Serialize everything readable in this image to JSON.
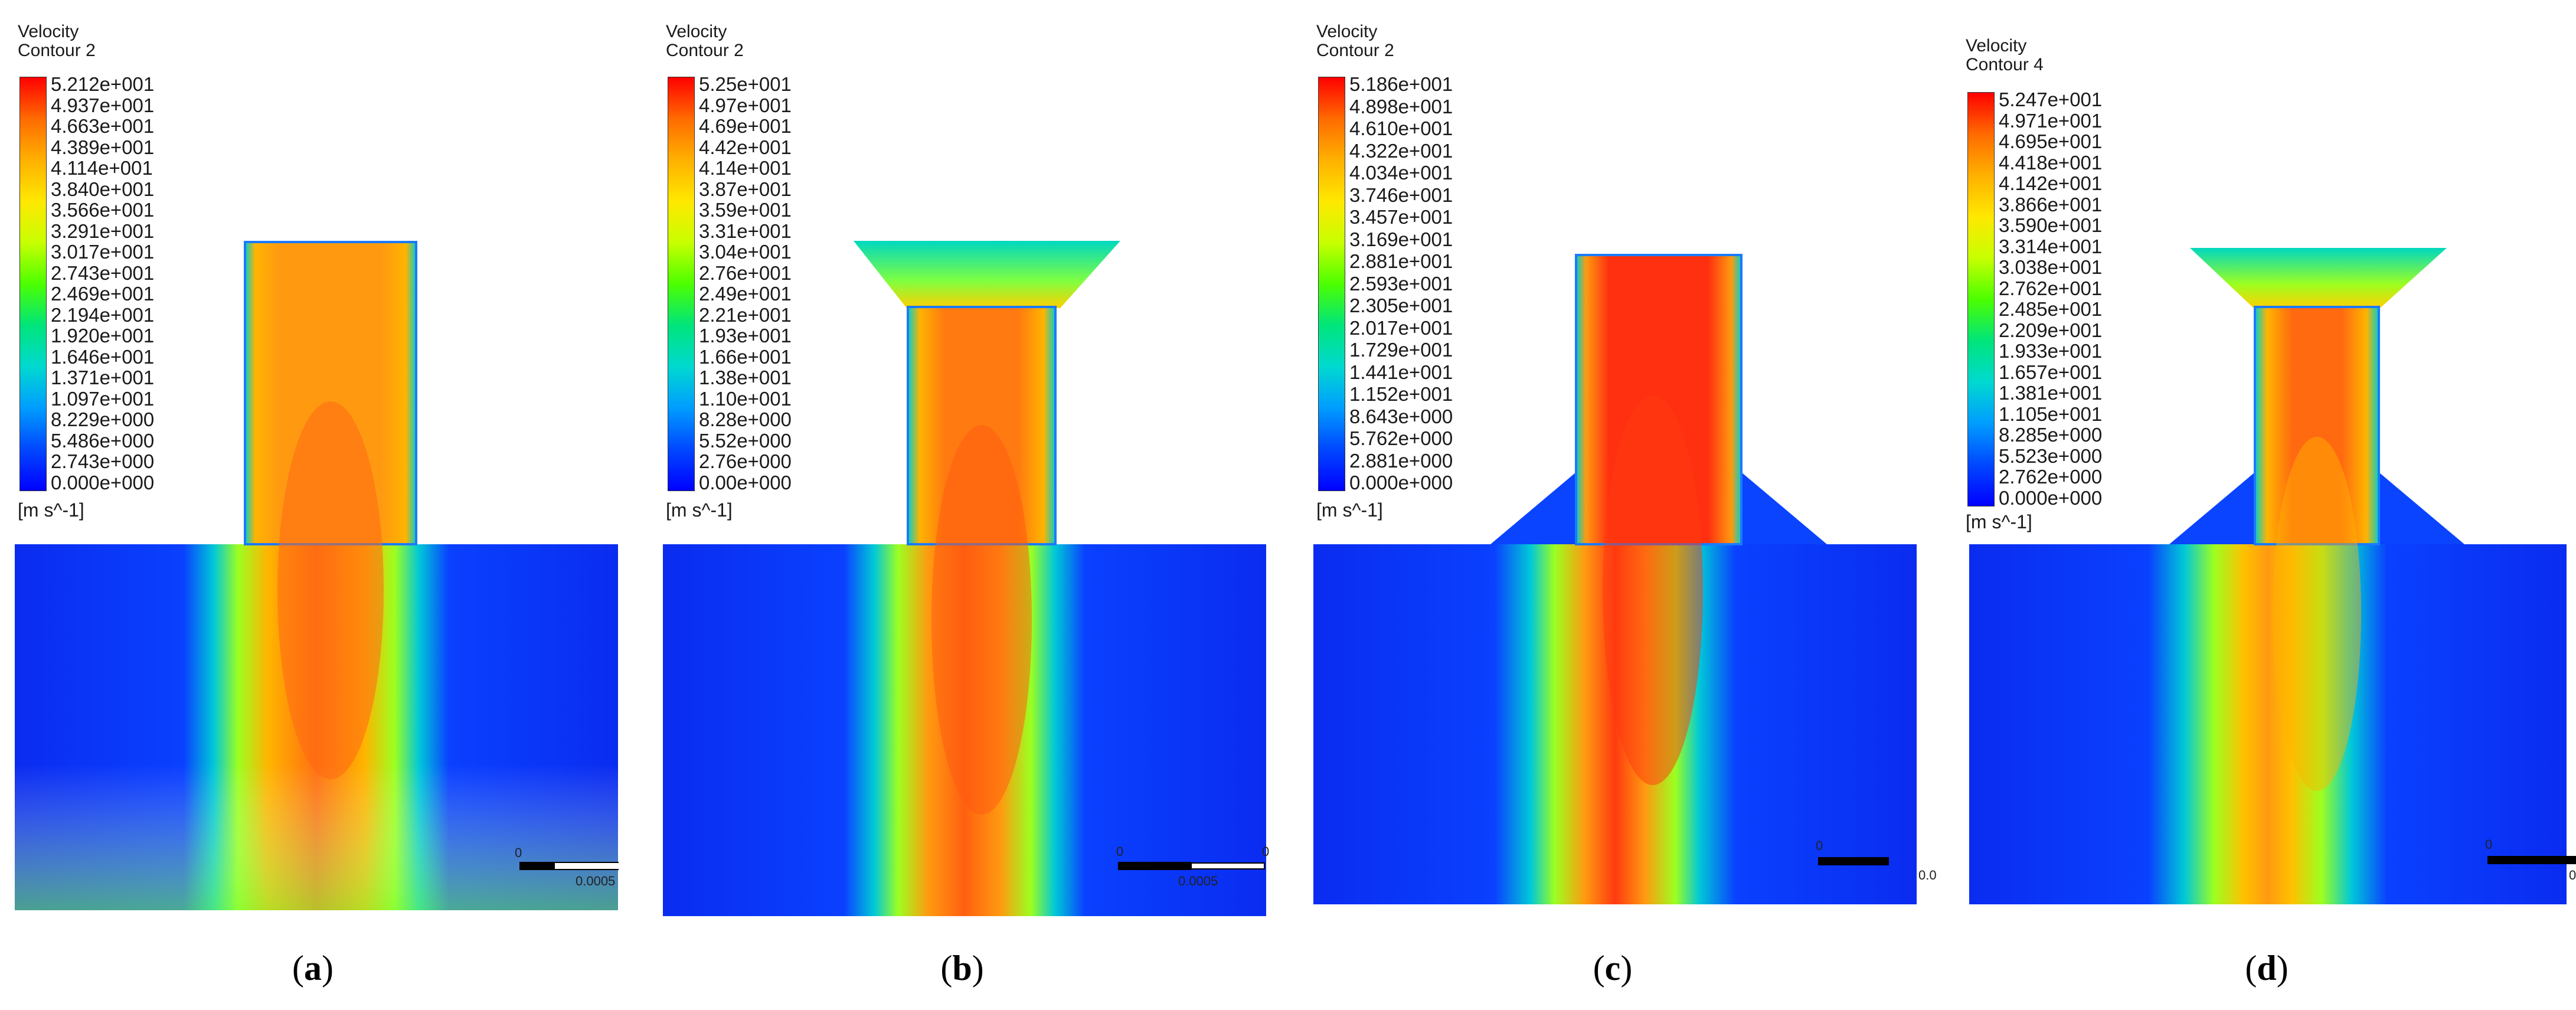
{
  "panels": [
    {
      "id": "a",
      "title": "Velocity",
      "subtitle": "Contour 2",
      "ticks": [
        "5.212e+001",
        "4.937e+001",
        "4.663e+001",
        "4.389e+001",
        "4.114e+001",
        "3.840e+001",
        "3.566e+001",
        "3.291e+001",
        "3.017e+001",
        "2.743e+001",
        "2.469e+001",
        "2.194e+001",
        "1.920e+001",
        "1.646e+001",
        "1.371e+001",
        "1.097e+001",
        "8.229e+000",
        "5.486e+000",
        "2.743e+000",
        "0.000e+000"
      ],
      "units": "[m s^-1]",
      "scale_left": "0",
      "scale_right": "0.0005",
      "caption_open": "(",
      "caption_letter": "a",
      "caption_close": ")"
    },
    {
      "id": "b",
      "title": "Velocity",
      "subtitle": "Contour 2",
      "ticks": [
        "5.25e+001",
        "4.97e+001",
        "4.69e+001",
        "4.42e+001",
        "4.14e+001",
        "3.87e+001",
        "3.59e+001",
        "3.31e+001",
        "3.04e+001",
        "2.76e+001",
        "2.49e+001",
        "2.21e+001",
        "1.93e+001",
        "1.66e+001",
        "1.38e+001",
        "1.10e+001",
        "8.28e+000",
        "5.52e+000",
        "2.76e+000",
        "0.00e+000"
      ],
      "units": "[m s^-1]",
      "scale_left": "0",
      "scale_right": "0.0005",
      "scale_end": "0",
      "caption_open": "(",
      "caption_letter": "b",
      "caption_close": ")"
    },
    {
      "id": "c",
      "title": "Velocity",
      "subtitle": "Contour 2",
      "ticks": [
        "5.186e+001",
        "4.898e+001",
        "4.610e+001",
        "4.322e+001",
        "4.034e+001",
        "3.746e+001",
        "3.457e+001",
        "3.169e+001",
        "2.881e+001",
        "2.593e+001",
        "2.305e+001",
        "2.017e+001",
        "1.729e+001",
        "1.441e+001",
        "1.152e+001",
        "8.643e+000",
        "5.762e+000",
        "2.881e+000",
        "0.000e+000"
      ],
      "units": "[m s^-1]",
      "scale_left": "0",
      "scale_right": "0.0",
      "caption_open": "(",
      "caption_letter": "c",
      "caption_close": ")"
    },
    {
      "id": "d",
      "title": "Velocity",
      "subtitle": "Contour 4",
      "ticks": [
        "5.247e+001",
        "4.971e+001",
        "4.695e+001",
        "4.418e+001",
        "4.142e+001",
        "3.866e+001",
        "3.590e+001",
        "3.314e+001",
        "3.038e+001",
        "2.762e+001",
        "2.485e+001",
        "2.209e+001",
        "1.933e+001",
        "1.657e+001",
        "1.381e+001",
        "1.105e+001",
        "8.285e+000",
        "5.523e+000",
        "2.762e+000",
        "0.000e+000"
      ],
      "units": "[m s^-1]",
      "scale_left": "0",
      "scale_right": "0",
      "caption_open": "(",
      "caption_letter": "d",
      "caption_close": ")"
    }
  ],
  "colors": {
    "core": "#ff4a10",
    "mid": "#ffb400",
    "edge": "#00d0c8",
    "background": "#0a2cf0"
  }
}
